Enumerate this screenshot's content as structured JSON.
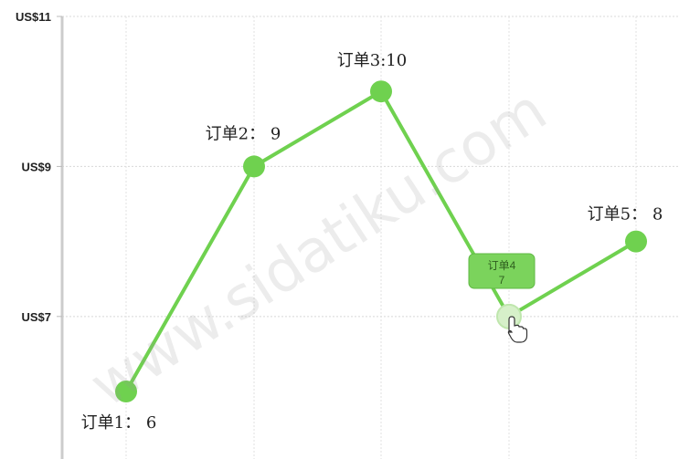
{
  "chart_data": {
    "type": "line",
    "categories": [
      "订单1",
      "订单2",
      "订单3",
      "订单4",
      "订单5"
    ],
    "values": [
      6,
      9,
      10,
      7,
      8
    ],
    "y_ticks": [
      "US$7",
      "US$9",
      "US$11"
    ],
    "y_tick_values": [
      7,
      9,
      11
    ],
    "ylim": [
      5.1,
      11
    ],
    "grid": true,
    "data_labels": [
      "订单1： 6",
      "订单2： 9",
      "订单3:10",
      "",
      "订单5： 8"
    ],
    "line_color": "#6fd14f",
    "tooltip": {
      "point_index": 3,
      "title": "订单4",
      "value": "7"
    }
  },
  "watermark": "www.sidatiku.com",
  "cursor_icon": "hand-pointer-icon"
}
